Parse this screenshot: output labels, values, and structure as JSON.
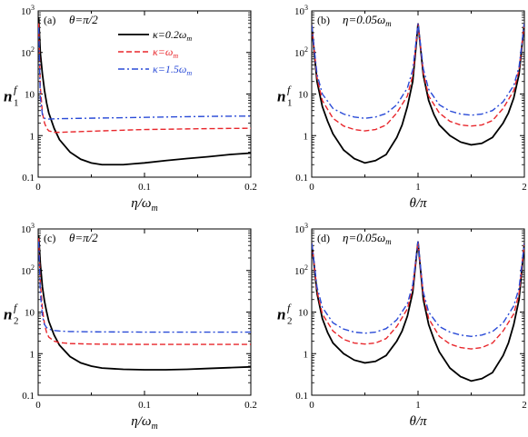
{
  "chart_data": [
    {
      "id": "a",
      "type": "line",
      "panel_label": "(a)",
      "annotation": "θ=π/2",
      "xlabel": "η/ω",
      "xlabel_sub": "m",
      "ylabel": "n",
      "ylabel_sup": "f",
      "ylabel_sub": "1",
      "xlim": [
        0,
        0.2
      ],
      "ylim": [
        0.1,
        1000
      ],
      "yscale": "log",
      "xticks": [
        {
          "v": 0,
          "t": "0"
        },
        {
          "v": 0.1,
          "t": "0.1"
        },
        {
          "v": 0.2,
          "t": "0.2"
        }
      ],
      "yticks": [
        {
          "v": 0.1,
          "t": "0.1"
        },
        {
          "v": 1,
          "t": "1"
        },
        {
          "v": 10,
          "t": "10"
        },
        {
          "v": 100,
          "t": "10",
          "sup": "2"
        },
        {
          "v": 1000,
          "t": "10",
          "sup": "3"
        }
      ],
      "legend": {
        "position": "top-right"
      },
      "series": [
        {
          "name": "κ=0.2ω",
          "name_sub": "m",
          "color": "#000000",
          "dash": "solid",
          "x": [
            0.0005,
            0.002,
            0.004,
            0.006,
            0.008,
            0.01,
            0.015,
            0.02,
            0.03,
            0.04,
            0.05,
            0.06,
            0.07,
            0.08,
            0.09,
            0.1,
            0.12,
            0.14,
            0.16,
            0.18,
            0.2
          ],
          "y": [
            700,
            100,
            30,
            12,
            6,
            3.5,
            1.5,
            0.8,
            0.4,
            0.27,
            0.22,
            0.2,
            0.2,
            0.2,
            0.21,
            0.22,
            0.25,
            0.28,
            0.31,
            0.35,
            0.38
          ]
        },
        {
          "name": "κ=ω",
          "name_sub": "m",
          "color": "#e8262b",
          "dash": "dashed",
          "x": [
            0.0005,
            0.002,
            0.004,
            0.006,
            0.008,
            0.01,
            0.015,
            0.02,
            0.04,
            0.06,
            0.08,
            0.1,
            0.12,
            0.14,
            0.16,
            0.18,
            0.2
          ],
          "y": [
            500,
            15,
            3.5,
            2,
            1.5,
            1.3,
            1.2,
            1.2,
            1.25,
            1.3,
            1.35,
            1.4,
            1.42,
            1.45,
            1.47,
            1.49,
            1.5
          ]
        },
        {
          "name": "κ=1.5ω",
          "name_sub": "m",
          "color": "#2a4bd7",
          "dash": "dashdot",
          "x": [
            0.0005,
            0.002,
            0.004,
            0.006,
            0.008,
            0.01,
            0.02,
            0.04,
            0.06,
            0.08,
            0.1,
            0.12,
            0.14,
            0.16,
            0.18,
            0.2
          ],
          "y": [
            400,
            8,
            3.2,
            2.6,
            2.5,
            2.5,
            2.55,
            2.6,
            2.65,
            2.7,
            2.75,
            2.8,
            2.85,
            2.9,
            2.93,
            2.95
          ]
        }
      ]
    },
    {
      "id": "b",
      "type": "line",
      "panel_label": "(b)",
      "annotation": "η=0.05ω",
      "annotation_sub": "m",
      "xlabel": "θ/π",
      "xlabel_sub": "",
      "ylabel": "n",
      "ylabel_sup": "f",
      "ylabel_sub": "1",
      "xlim": [
        0,
        2
      ],
      "ylim": [
        0.1,
        1000
      ],
      "yscale": "log",
      "xticks": [
        {
          "v": 0,
          "t": "0"
        },
        {
          "v": 1,
          "t": "1"
        },
        {
          "v": 2,
          "t": "2"
        }
      ],
      "yticks": [
        {
          "v": 0.1,
          "t": "0.1"
        },
        {
          "v": 1,
          "t": "1"
        },
        {
          "v": 10,
          "t": "10"
        },
        {
          "v": 100,
          "t": "10",
          "sup": "2"
        },
        {
          "v": 1000,
          "t": "10",
          "sup": "3"
        }
      ],
      "series": [
        {
          "color": "#000000",
          "dash": "solid",
          "x": [
            0,
            0.02,
            0.05,
            0.1,
            0.15,
            0.2,
            0.3,
            0.4,
            0.5,
            0.6,
            0.7,
            0.8,
            0.85,
            0.9,
            0.95,
            0.98,
            1,
            1.02,
            1.05,
            1.1,
            1.15,
            1.2,
            1.3,
            1.4,
            1.5,
            1.6,
            1.7,
            1.8,
            1.85,
            1.9,
            1.95,
            1.98,
            2
          ],
          "y": [
            450,
            130,
            20,
            5,
            2.2,
            1.1,
            0.45,
            0.28,
            0.22,
            0.25,
            0.35,
            0.9,
            1.8,
            5,
            20,
            130,
            500,
            160,
            28,
            7,
            3.2,
            1.8,
            1,
            0.7,
            0.6,
            0.65,
            0.9,
            2,
            3.5,
            8,
            30,
            170,
            500
          ]
        },
        {
          "color": "#e8262b",
          "dash": "dashed",
          "x": [
            0,
            0.02,
            0.05,
            0.1,
            0.2,
            0.3,
            0.4,
            0.5,
            0.6,
            0.7,
            0.8,
            0.9,
            0.95,
            0.98,
            1,
            1.02,
            1.05,
            1.1,
            1.2,
            1.3,
            1.4,
            1.5,
            1.6,
            1.7,
            1.8,
            1.9,
            1.95,
            1.98,
            2
          ],
          "y": [
            450,
            140,
            25,
            7,
            2.6,
            1.7,
            1.4,
            1.3,
            1.4,
            1.8,
            3.5,
            9,
            28,
            150,
            500,
            170,
            32,
            9,
            3.5,
            2.2,
            1.8,
            1.7,
            1.8,
            2.3,
            4.5,
            12,
            38,
            180,
            500
          ]
        },
        {
          "color": "#2a4bd7",
          "dash": "dashdot",
          "x": [
            0,
            0.02,
            0.05,
            0.1,
            0.2,
            0.3,
            0.4,
            0.5,
            0.6,
            0.7,
            0.8,
            0.9,
            0.95,
            0.98,
            1,
            1.02,
            1.05,
            1.1,
            1.2,
            1.3,
            1.4,
            1.5,
            1.6,
            1.7,
            1.8,
            1.9,
            1.95,
            1.98,
            2
          ],
          "y": [
            450,
            150,
            30,
            10,
            4.5,
            3.3,
            2.8,
            2.6,
            2.8,
            3.4,
            5.5,
            14,
            38,
            170,
            500,
            180,
            40,
            13,
            5.5,
            3.9,
            3.3,
            3.1,
            3.3,
            4,
            6.5,
            16,
            45,
            190,
            500
          ]
        }
      ]
    },
    {
      "id": "c",
      "type": "line",
      "panel_label": "(c)",
      "annotation": "θ=π/2",
      "xlabel": "η/ω",
      "xlabel_sub": "m",
      "ylabel": "n",
      "ylabel_sup": "f",
      "ylabel_sub": "2",
      "xlim": [
        0,
        0.2
      ],
      "ylim": [
        0.1,
        1000
      ],
      "yscale": "log",
      "xticks": [
        {
          "v": 0,
          "t": "0"
        },
        {
          "v": 0.1,
          "t": "0.1"
        },
        {
          "v": 0.2,
          "t": "0.2"
        }
      ],
      "yticks": [
        {
          "v": 0.1,
          "t": "0.1"
        },
        {
          "v": 1,
          "t": "1"
        },
        {
          "v": 10,
          "t": "10"
        },
        {
          "v": 100,
          "t": "10",
          "sup": "2"
        },
        {
          "v": 1000,
          "t": "10",
          "sup": "3"
        }
      ],
      "series": [
        {
          "color": "#000000",
          "dash": "solid",
          "x": [
            0.0005,
            0.002,
            0.004,
            0.006,
            0.008,
            0.01,
            0.015,
            0.02,
            0.03,
            0.04,
            0.05,
            0.06,
            0.08,
            0.1,
            0.12,
            0.14,
            0.16,
            0.18,
            0.2
          ],
          "y": [
            700,
            150,
            40,
            18,
            10,
            6,
            2.8,
            1.6,
            0.85,
            0.6,
            0.5,
            0.45,
            0.42,
            0.41,
            0.41,
            0.42,
            0.44,
            0.46,
            0.48
          ]
        },
        {
          "color": "#e8262b",
          "dash": "dashed",
          "x": [
            0.0005,
            0.002,
            0.004,
            0.006,
            0.008,
            0.01,
            0.015,
            0.02,
            0.03,
            0.05,
            0.08,
            0.1,
            0.15,
            0.2
          ],
          "y": [
            600,
            50,
            12,
            5,
            3.2,
            2.5,
            2,
            1.85,
            1.75,
            1.7,
            1.68,
            1.67,
            1.67,
            1.67
          ]
        },
        {
          "color": "#2a4bd7",
          "dash": "dashdot",
          "x": [
            0.0005,
            0.002,
            0.004,
            0.006,
            0.008,
            0.01,
            0.015,
            0.02,
            0.03,
            0.05,
            0.08,
            0.1,
            0.15,
            0.2
          ],
          "y": [
            500,
            30,
            8,
            5,
            4.2,
            3.9,
            3.6,
            3.5,
            3.4,
            3.35,
            3.32,
            3.3,
            3.3,
            3.3
          ]
        }
      ]
    },
    {
      "id": "d",
      "type": "line",
      "panel_label": "(d)",
      "annotation": "η=0.05ω",
      "annotation_sub": "m",
      "xlabel": "θ/π",
      "xlabel_sub": "",
      "ylabel": "n",
      "ylabel_sup": "f",
      "ylabel_sub": "2",
      "xlim": [
        0,
        2
      ],
      "ylim": [
        0.1,
        1000
      ],
      "yscale": "log",
      "xticks": [
        {
          "v": 0,
          "t": "0"
        },
        {
          "v": 1,
          "t": "1"
        },
        {
          "v": 2,
          "t": "2"
        }
      ],
      "yticks": [
        {
          "v": 0.1,
          "t": "0.1"
        },
        {
          "v": 1,
          "t": "1"
        },
        {
          "v": 10,
          "t": "10"
        },
        {
          "v": 100,
          "t": "10",
          "sup": "2"
        },
        {
          "v": 1000,
          "t": "10",
          "sup": "3"
        }
      ],
      "series": [
        {
          "color": "#000000",
          "dash": "solid",
          "x": [
            0,
            0.02,
            0.05,
            0.1,
            0.15,
            0.2,
            0.3,
            0.4,
            0.5,
            0.6,
            0.7,
            0.8,
            0.85,
            0.9,
            0.95,
            0.98,
            1,
            1.02,
            1.05,
            1.1,
            1.15,
            1.2,
            1.3,
            1.4,
            1.5,
            1.6,
            1.7,
            1.8,
            1.85,
            1.9,
            1.95,
            1.98,
            2
          ],
          "y": [
            450,
            160,
            28,
            7,
            3.2,
            1.8,
            1,
            0.7,
            0.6,
            0.65,
            0.9,
            2,
            3.5,
            8,
            30,
            170,
            500,
            130,
            20,
            5,
            2.2,
            1.1,
            0.45,
            0.28,
            0.22,
            0.25,
            0.35,
            0.9,
            1.8,
            5,
            20,
            130,
            450
          ]
        },
        {
          "color": "#e8262b",
          "dash": "dashed",
          "x": [
            0,
            0.02,
            0.05,
            0.1,
            0.2,
            0.3,
            0.4,
            0.5,
            0.6,
            0.7,
            0.8,
            0.9,
            0.95,
            0.98,
            1,
            1.02,
            1.05,
            1.1,
            1.2,
            1.3,
            1.4,
            1.5,
            1.6,
            1.7,
            1.8,
            1.9,
            1.95,
            1.98,
            2
          ],
          "y": [
            450,
            170,
            32,
            9,
            3.5,
            2.2,
            1.8,
            1.7,
            1.8,
            2.3,
            4.5,
            12,
            38,
            180,
            500,
            140,
            25,
            7,
            2.6,
            1.7,
            1.4,
            1.3,
            1.4,
            1.8,
            3.5,
            9,
            28,
            150,
            450
          ]
        },
        {
          "color": "#2a4bd7",
          "dash": "dashdot",
          "x": [
            0,
            0.02,
            0.05,
            0.1,
            0.2,
            0.3,
            0.4,
            0.5,
            0.6,
            0.7,
            0.8,
            0.9,
            0.95,
            0.98,
            1,
            1.02,
            1.05,
            1.1,
            1.2,
            1.3,
            1.4,
            1.5,
            1.6,
            1.7,
            1.8,
            1.9,
            1.95,
            1.98,
            2
          ],
          "y": [
            450,
            180,
            40,
            13,
            5.5,
            3.9,
            3.3,
            3.1,
            3.3,
            4,
            6.5,
            16,
            45,
            190,
            500,
            150,
            30,
            10,
            4.5,
            3.3,
            2.8,
            2.6,
            2.8,
            3.4,
            5.5,
            14,
            38,
            170,
            450
          ]
        }
      ]
    }
  ]
}
